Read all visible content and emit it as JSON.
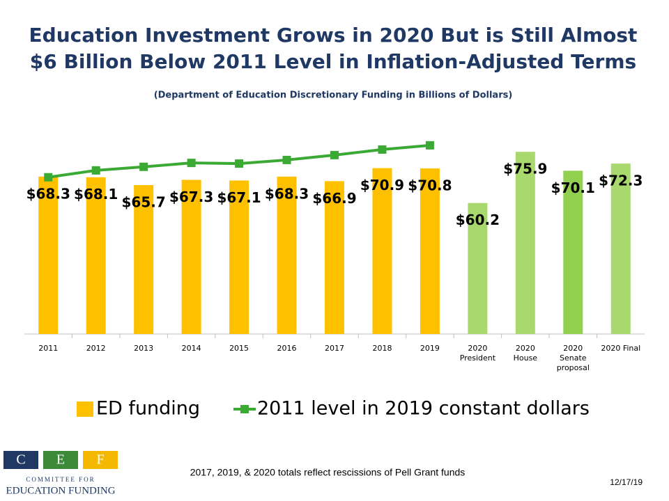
{
  "chart_data": {
    "type": "bar",
    "title": "Education Investment Grows in 2020 But is Still Almost\n$6 Billion Below 2011 Level in Inflation-Adjusted Terms",
    "subtitle": "(Department of Education Discretionary Funding in Billions of Dollars)",
    "categories": [
      "2011",
      "2012",
      "2013",
      "2014",
      "2015",
      "2016",
      "2017",
      "2018",
      "2019",
      "2020\nPresident",
      "2020\nHouse",
      "2020\nSenate\nproposal",
      "2020 Final"
    ],
    "ylim": [
      20,
      80
    ],
    "series": [
      {
        "name": "ED funding",
        "type": "bar",
        "color": "#FFC000",
        "colors": [
          "#FFC000",
          "#FFC000",
          "#FFC000",
          "#FFC000",
          "#FFC000",
          "#FFC000",
          "#FFC000",
          "#FFC000",
          "#FFC000",
          "#A9D86E",
          "#A9D86E",
          "#92D050",
          "#A9D86E"
        ],
        "values": [
          68.3,
          68.1,
          65.7,
          67.3,
          67.1,
          68.3,
          66.9,
          70.9,
          70.8,
          60.2,
          75.9,
          70.1,
          72.3
        ],
        "value_labels": [
          "$68.3",
          "$68.1",
          "$65.7",
          "$67.3",
          "$67.1",
          "$68.3",
          "$66.9",
          "$70.9",
          "$70.8",
          "$60.2",
          "$75.9",
          "$70.1",
          "$72.3"
        ]
      },
      {
        "name": "2011 level in 2019 constant dollars",
        "type": "line",
        "color": "#3AAA35",
        "values": [
          68.1,
          70.2,
          71.3,
          72.5,
          72.3,
          73.4,
          74.9,
          76.6,
          77.9,
          null,
          null,
          null,
          null
        ]
      }
    ]
  },
  "footnote": "2017, 2019, & 2020 totals reflect rescissions of Pell Grant funds",
  "date": "12/17/19",
  "logo": {
    "letters": [
      "C",
      "E",
      "F"
    ],
    "line1": "COMMITTEE FOR",
    "line2": "EDUCATION FUNDING"
  }
}
